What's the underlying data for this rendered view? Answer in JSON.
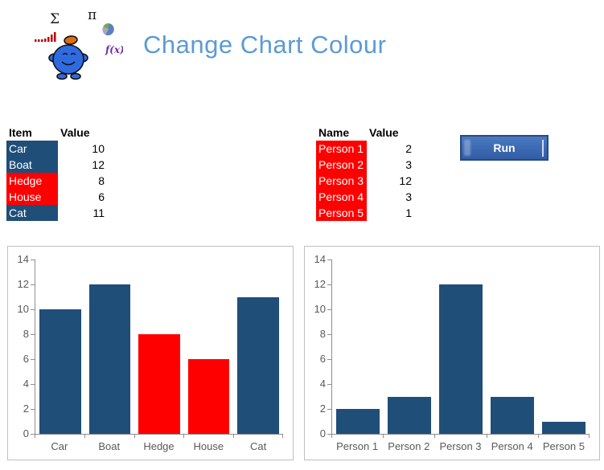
{
  "header": {
    "title": "Change Chart Colour",
    "logo": {
      "sigma": "Σ",
      "pi": "π",
      "fx": "f(x)"
    }
  },
  "items_table": {
    "headers": [
      "Item",
      "Value"
    ],
    "rows": [
      {
        "label": "Car",
        "value": "10",
        "bg": "#1F4E79"
      },
      {
        "label": "Boat",
        "value": "12",
        "bg": "#1F4E79"
      },
      {
        "label": "Hedge",
        "value": "8",
        "bg": "#FF0000"
      },
      {
        "label": "House",
        "value": "6",
        "bg": "#FF0000"
      },
      {
        "label": "Cat",
        "value": "11",
        "bg": "#1F4E79"
      }
    ]
  },
  "names_table": {
    "headers": [
      "Name",
      "Value"
    ],
    "rows": [
      {
        "label": "Person 1",
        "value": "2",
        "bg": "#FF0000"
      },
      {
        "label": "Person 2",
        "value": "3",
        "bg": "#FF0000"
      },
      {
        "label": "Person 3",
        "value": "12",
        "bg": "#FF0000"
      },
      {
        "label": "Person 4",
        "value": "3",
        "bg": "#FF0000"
      },
      {
        "label": "Person 5",
        "value": "1",
        "bg": "#FF0000"
      }
    ]
  },
  "run_button": {
    "label": "Run"
  },
  "chart_data": [
    {
      "type": "bar",
      "categories": [
        "Car",
        "Boat",
        "Hedge",
        "House",
        "Cat"
      ],
      "values": [
        10,
        12,
        8,
        6,
        11
      ],
      "bar_colors": [
        "#1F4E79",
        "#1F4E79",
        "#FF0000",
        "#FF0000",
        "#1F4E79"
      ],
      "title": "",
      "xlabel": "",
      "ylabel": "",
      "ylim": [
        0,
        14
      ],
      "ytick_step": 2,
      "grid": false,
      "legend": false
    },
    {
      "type": "bar",
      "categories": [
        "Person 1",
        "Person 2",
        "Person 3",
        "Person 4",
        "Person 5"
      ],
      "values": [
        2,
        3,
        12,
        3,
        1
      ],
      "bar_colors": [
        "#1F4E79",
        "#1F4E79",
        "#1F4E79",
        "#1F4E79",
        "#1F4E79"
      ],
      "title": "",
      "xlabel": "",
      "ylabel": "",
      "ylim": [
        0,
        14
      ],
      "ytick_step": 2,
      "grid": false,
      "legend": false
    }
  ],
  "colors": {
    "title_blue": "#5B9BD5",
    "navy": "#1F4E79",
    "red": "#FF0000",
    "axis_gray": "#8E8E8E",
    "chart_border": "#BFBFBF",
    "tick_label": "#595959",
    "mini_bar_red": "#C00000",
    "fx_purple": "#7030A0"
  }
}
